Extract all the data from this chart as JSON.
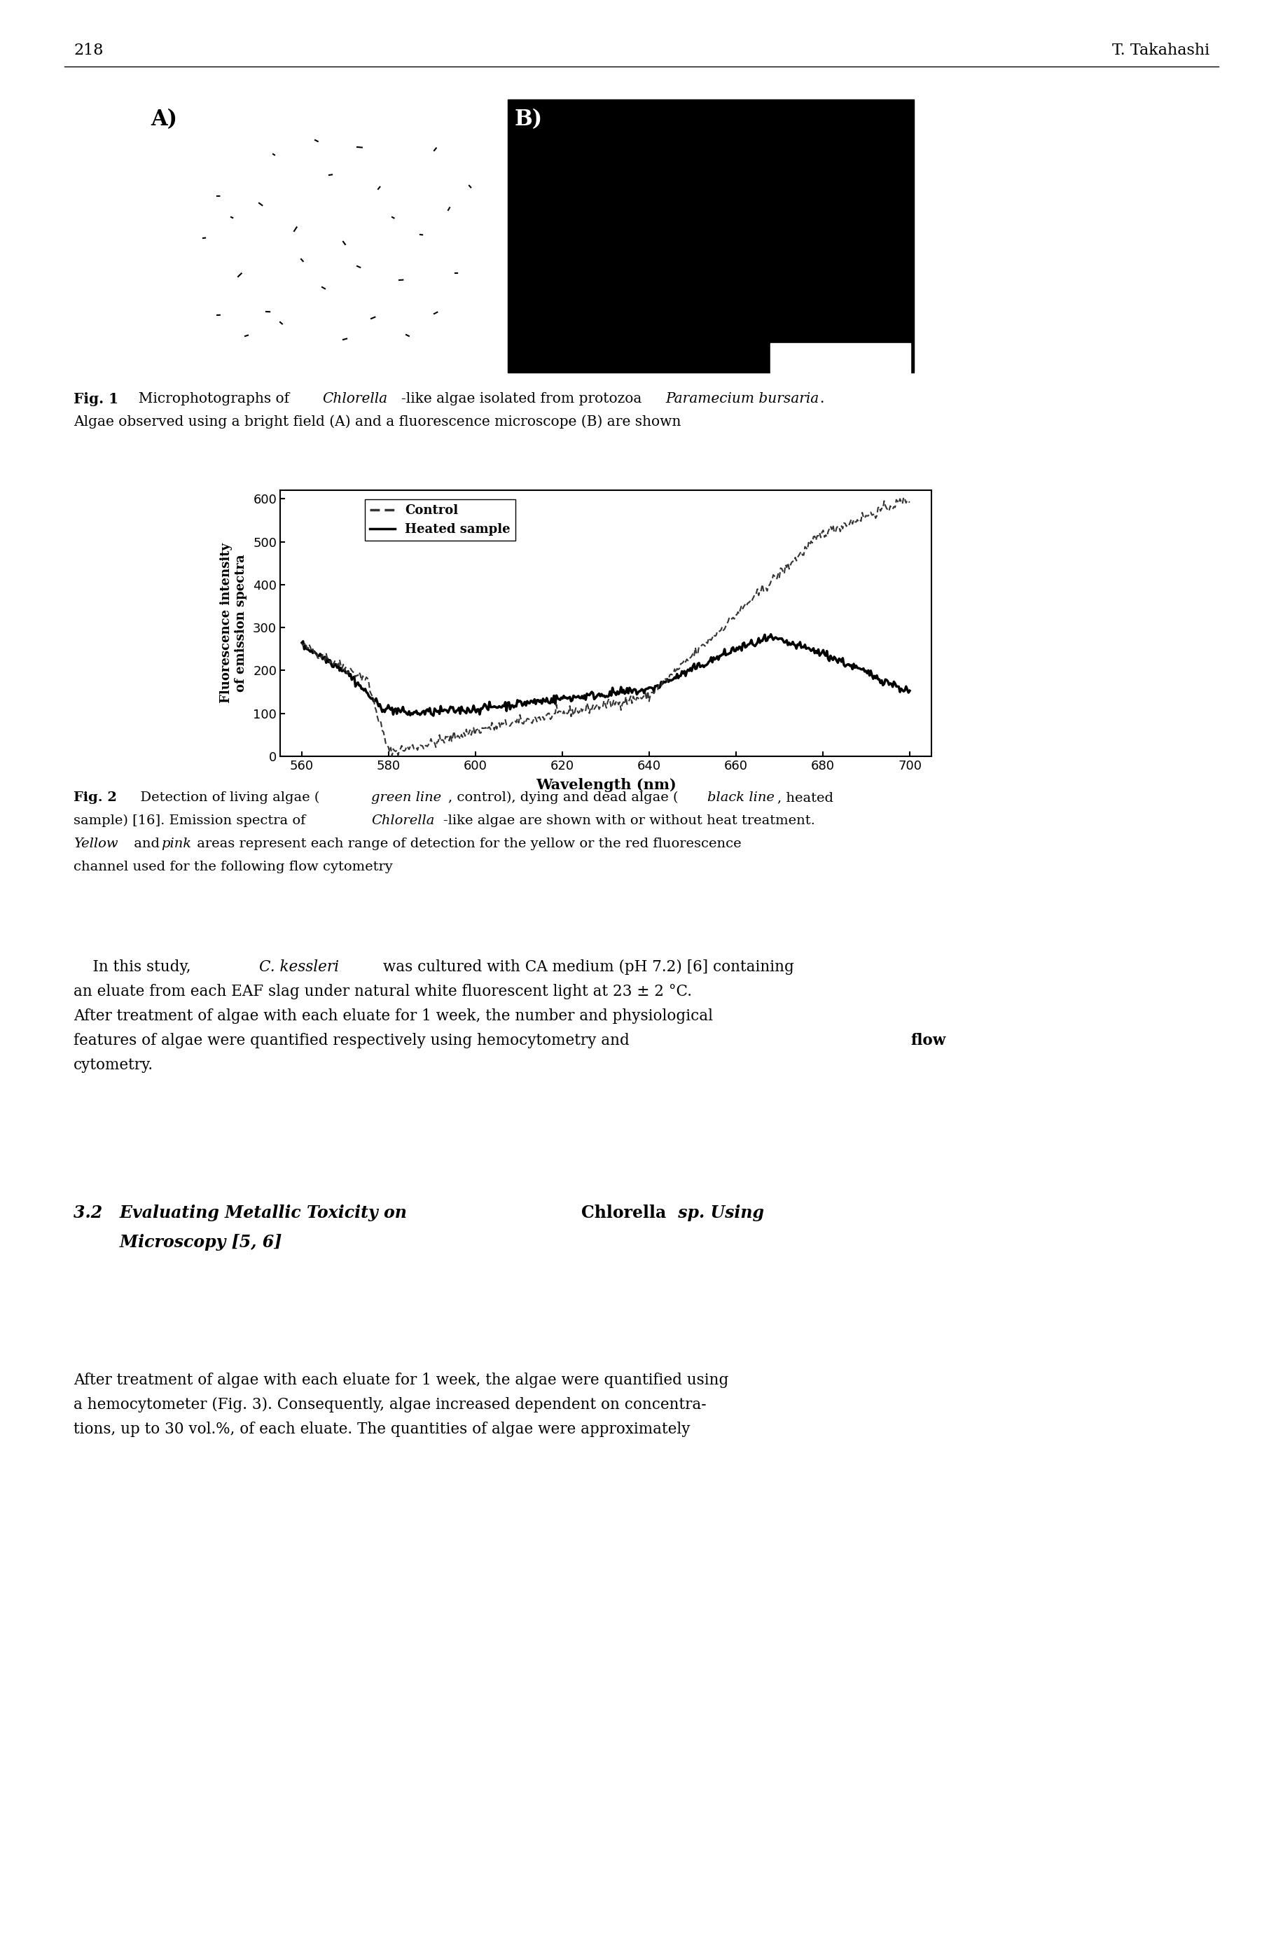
{
  "page_number": "218",
  "page_author": "T. Takahashi",
  "fig1_label_A": "A)",
  "fig1_label_B": "B)",
  "chart_ylabel_line1": "Fluorescence intensity",
  "chart_ylabel_line2": "of emission spectra",
  "chart_xlabel": "Wavelength (nm)",
  "chart_xlim": [
    555,
    705
  ],
  "chart_ylim": [
    0,
    620
  ],
  "chart_xticks": [
    560,
    580,
    600,
    620,
    640,
    660,
    680,
    700
  ],
  "chart_yticks": [
    0,
    100,
    200,
    300,
    400,
    500,
    600
  ],
  "legend_control": "Control",
  "legend_heated": "Heated sample",
  "bg_color": "#ffffff",
  "text_color": "#000000",
  "line_color_control": "#000000",
  "line_color_heated": "#000000",
  "fig1_cap_bold": "Fig. 1",
  "fig1_cap_normal": "  Microphotographs of ",
  "fig1_cap_italic1": "Chlorella",
  "fig1_cap_normal2": "-like algae isolated from protozoa ",
  "fig1_cap_italic2": "Paramecium bursaria",
  "fig1_cap_normal3": ".",
  "fig1_cap_line2": "Algae observed using a bright field (A) and a fluorescence microscope (B) are shown",
  "fig2_cap_bold": "Fig. 2",
  "fig2_cap_normal1": "  Detection of living algae (",
  "fig2_cap_italic1": "green line",
  "fig2_cap_normal2": ", control), dying and dead algae (",
  "fig2_cap_italic2": "black line",
  "fig2_cap_normal3": ", heated",
  "fig2_cap_line2a": "sample) [16]. Emission spectra of ",
  "fig2_cap_line2b": "Chlorella",
  "fig2_cap_line2c": "-like algae are shown with or without heat treatment.",
  "fig2_cap_line3a": "Yellow",
  "fig2_cap_line3b": " and ",
  "fig2_cap_line3c": "pink",
  "fig2_cap_line3d": " areas represent each range of detection for the yellow or the red fluorescence",
  "fig2_cap_line4": "channel used for the following flow cytometry",
  "para1_indent": "    In this study, ",
  "para1_italic": "C. kessleri",
  "para1_rest1": " was cultured with CA medium (pH 7.2) [6] containing",
  "para1_line2": "an eluate from each EAF slag under natural white fluorescent light at 23 ± 2 °C.",
  "para1_line3": "After treatment of algae with each eluate for 1 week, the number and physiological",
  "para1_line4a": "features of algae were quantified respectively using hemocytometry and ",
  "para1_line4b": "flow",
  "para1_line5": "cytometry.",
  "sec_italic1": "3.2   Evaluating Metallic Toxicity on ",
  "sec_bold": "Chlorella",
  "sec_italic2": " sp. Using",
  "sec_line2": "        Microscopy [5, 6]",
  "para2_line1": "After treatment of algae with each eluate for 1 week, the algae were quantified using",
  "para2_line2": "a hemocytometer (Fig. 3). Consequently, algae increased dependent on concentra-",
  "para2_line3": "tions, up to 30 vol.%, of each eluate. The quantities of algae were approximately"
}
